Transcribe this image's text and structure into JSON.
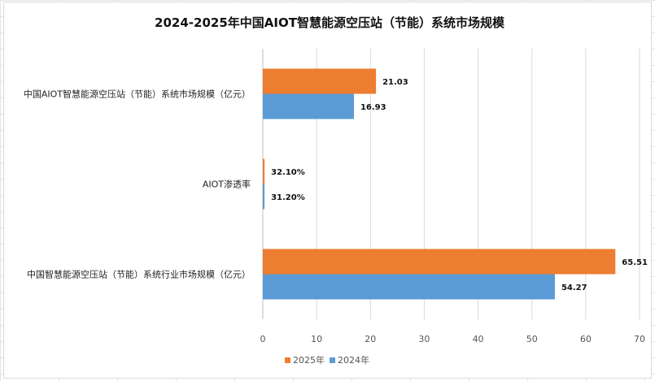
{
  "chart_data": {
    "type": "bar",
    "orientation": "horizontal",
    "title": "2024-2025年中国AIOT智慧能源空压站（节能）系统市场规模",
    "categories": [
      "中国AIOT智慧能源空压站（节能）系统市场规模（亿元）",
      "AIOT渗透率",
      "中国智慧能源空压站（节能）系统行业市场规模（亿元）"
    ],
    "series": [
      {
        "name": "2025年",
        "color": "#ed7d31",
        "values": [
          21.03,
          0.321,
          65.51
        ],
        "labels": [
          "21.03",
          "32.10%",
          "65.51"
        ]
      },
      {
        "name": "2024年",
        "color": "#5b9bd5",
        "values": [
          16.93,
          0.312,
          54.27
        ],
        "labels": [
          "16.93",
          "31.20%",
          "54.27"
        ]
      }
    ],
    "xlim": [
      0,
      70
    ],
    "xticks": [
      "0",
      "10",
      "20",
      "30",
      "40",
      "50",
      "60",
      "70"
    ],
    "grid": true,
    "legend_position": "bottom"
  }
}
